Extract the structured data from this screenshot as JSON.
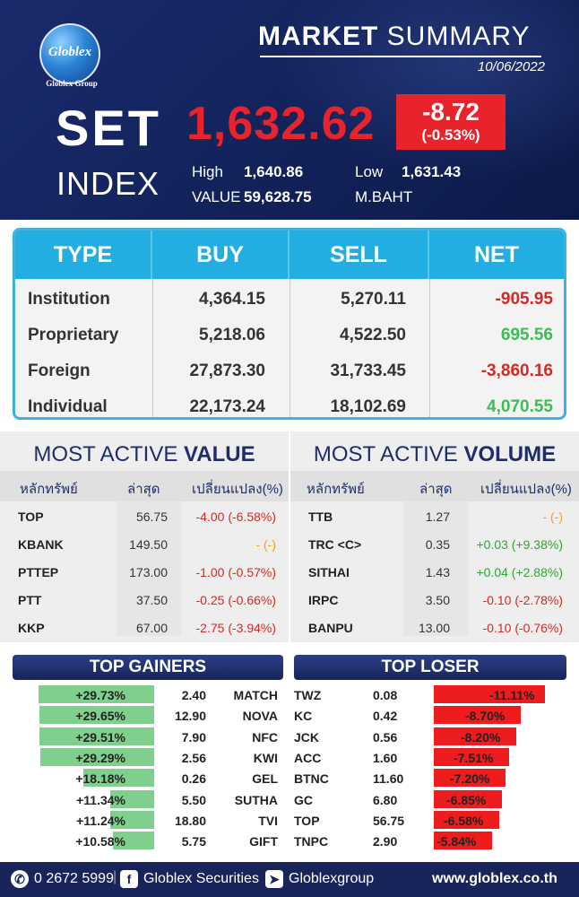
{
  "header": {
    "logo_text": "Globlex",
    "logo_sub": "Globlex Group",
    "title_bold": "MARKET",
    "title_rest": " SUMMARY",
    "date": "10/06/2022",
    "set_label": "SET",
    "index_label": "INDEX",
    "index_value": "1,632.62",
    "change": "-8.72",
    "change_pct": "(-0.53%)",
    "high_label": "High",
    "high_value": "1,640.86",
    "low_label": "Low",
    "low_value": "1,631.43",
    "value_label": "VALUE",
    "value_value": "59,628.75",
    "unit": "M.BAHT"
  },
  "flows": {
    "headers": [
      "TYPE",
      "BUY",
      "SELL",
      "NET"
    ],
    "rows": [
      {
        "type": "Institution",
        "buy": "4,364.15",
        "sell": "5,270.11",
        "net": "-905.95",
        "dir": "down"
      },
      {
        "type": "Proprietary",
        "buy": "5,218.06",
        "sell": "4,522.50",
        "net": "695.56",
        "dir": "up"
      },
      {
        "type": "Foreign",
        "buy": "27,873.30",
        "sell": "31,733.45",
        "net": "-3,860.16",
        "dir": "down"
      },
      {
        "type": "Individual",
        "buy": "22,173.24",
        "sell": "18,102.69",
        "net": "4,070.55",
        "dir": "up"
      }
    ]
  },
  "most_active_value": {
    "title_light": "MOST ACTIVE ",
    "title_bold": "VALUE",
    "col_symbol": "หลักทรัพย์",
    "col_last": "ล่าสุด",
    "col_change": "เปลี่ยนแปลง(%)",
    "rows": [
      {
        "symbol": "TOP",
        "last": "56.75",
        "change": "-4.00 (-6.58%)",
        "dir": "down"
      },
      {
        "symbol": "KBANK",
        "last": "149.50",
        "change": "- (-)",
        "dir": "flat"
      },
      {
        "symbol": "PTTEP",
        "last": "173.00",
        "change": "-1.00 (-0.57%)",
        "dir": "down"
      },
      {
        "symbol": "PTT",
        "last": "37.50",
        "change": "-0.25 (-0.66%)",
        "dir": "down"
      },
      {
        "symbol": "KKP",
        "last": "67.00",
        "change": "-2.75 (-3.94%)",
        "dir": "down"
      }
    ]
  },
  "most_active_volume": {
    "title_light": "MOST ACTIVE ",
    "title_bold": "VOLUME",
    "col_symbol": "หลักทรัพย์",
    "col_last": "ล่าสุด",
    "col_change": "เปลี่ยนแปลง(%)",
    "rows": [
      {
        "symbol": "TTB",
        "last": "1.27",
        "change": "- (-)",
        "dir": "flat"
      },
      {
        "symbol": "TRC <C>",
        "last": "0.35",
        "change": "+0.03 (+9.38%)",
        "dir": "up"
      },
      {
        "symbol": "SITHAI",
        "last": "1.43",
        "change": "+0.04 (+2.88%)",
        "dir": "up"
      },
      {
        "symbol": "IRPC",
        "last": "3.50",
        "change": "-0.10 (-2.78%)",
        "dir": "down"
      },
      {
        "symbol": "BANPU",
        "last": "13.00",
        "change": "-0.10 (-0.76%)",
        "dir": "down"
      }
    ]
  },
  "top_gainers": {
    "title": "TOP GAINERS",
    "rows": [
      {
        "pct": "+29.73%",
        "pct_value": 29.73,
        "price": "2.40",
        "symbol": "MATCH"
      },
      {
        "pct": "+29.65%",
        "pct_value": 29.65,
        "price": "12.90",
        "symbol": "NOVA"
      },
      {
        "pct": "+29.51%",
        "pct_value": 29.51,
        "price": "7.90",
        "symbol": "NFC"
      },
      {
        "pct": "+29.29%",
        "pct_value": 29.29,
        "price": "2.56",
        "symbol": "KWI"
      },
      {
        "pct": "+18.18%",
        "pct_value": 18.18,
        "price": "0.26",
        "symbol": "GEL"
      },
      {
        "pct": "+11.34%",
        "pct_value": 11.34,
        "price": "5.50",
        "symbol": "SUTHA"
      },
      {
        "pct": "+11.24%",
        "pct_value": 11.24,
        "price": "18.80",
        "symbol": "TVI"
      },
      {
        "pct": "+10.58%",
        "pct_value": 10.58,
        "price": "5.75",
        "symbol": "GIFT"
      }
    ]
  },
  "top_losers": {
    "title": "TOP LOSER",
    "rows": [
      {
        "symbol": "TWZ",
        "price": "0.08",
        "pct": "-11.11%",
        "pct_value": 11.11
      },
      {
        "symbol": "KC",
        "price": "0.42",
        "pct": "-8.70%",
        "pct_value": 8.7
      },
      {
        "symbol": "JCK",
        "price": "0.56",
        "pct": "-8.20%",
        "pct_value": 8.2
      },
      {
        "symbol": "ACC",
        "price": "1.60",
        "pct": "-7.51%",
        "pct_value": 7.51
      },
      {
        "symbol": "BTNC",
        "price": "11.60",
        "pct": "-7.20%",
        "pct_value": 7.2
      },
      {
        "symbol": "GC",
        "price": "6.80",
        "pct": "-6.85%",
        "pct_value": 6.85
      },
      {
        "symbol": "TOP",
        "price": "56.75",
        "pct": "-6.58%",
        "pct_value": 6.58
      },
      {
        "symbol": "TNPC",
        "price": "2.90",
        "pct": "-5.84%",
        "pct_value": 5.84
      }
    ]
  },
  "footer": {
    "phone": "0 2672 5999",
    "facebook": "Globlex Securities",
    "line": "Globlexgroup",
    "website": "www.globlex.co.th"
  },
  "colors": {
    "navy": "#1a2a6c",
    "red": "#e8232b",
    "green": "#2fa52f",
    "cyan": "#22aee0"
  }
}
